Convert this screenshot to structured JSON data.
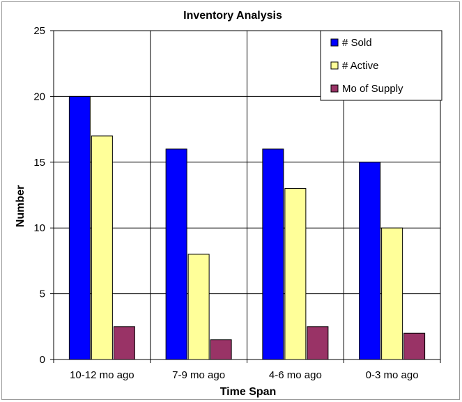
{
  "chart_data": {
    "type": "bar",
    "title": "Inventory Analysis",
    "xlabel": "Time Span",
    "ylabel": "Number",
    "categories": [
      "10-12 mo ago",
      "7-9 mo ago",
      "4-6 mo ago",
      "0-3 mo ago"
    ],
    "series": [
      {
        "name": "# Sold",
        "values": [
          20,
          16,
          16,
          15
        ],
        "color": "#0000ff"
      },
      {
        "name": "# Active",
        "values": [
          17,
          8,
          13,
          10
        ],
        "color": "#ffff99"
      },
      {
        "name": "Mo of Supply",
        "values": [
          2.5,
          1.5,
          2.5,
          2
        ],
        "color": "#993366"
      }
    ],
    "ylim": [
      0,
      25
    ],
    "yticks": [
      "0",
      "5",
      "10",
      "15",
      "20",
      "25"
    ],
    "ytick_values": [
      0,
      5,
      10,
      15,
      20,
      25
    ],
    "grid": true,
    "legend_position": "top-right",
    "plot_background": "#ffffff"
  }
}
